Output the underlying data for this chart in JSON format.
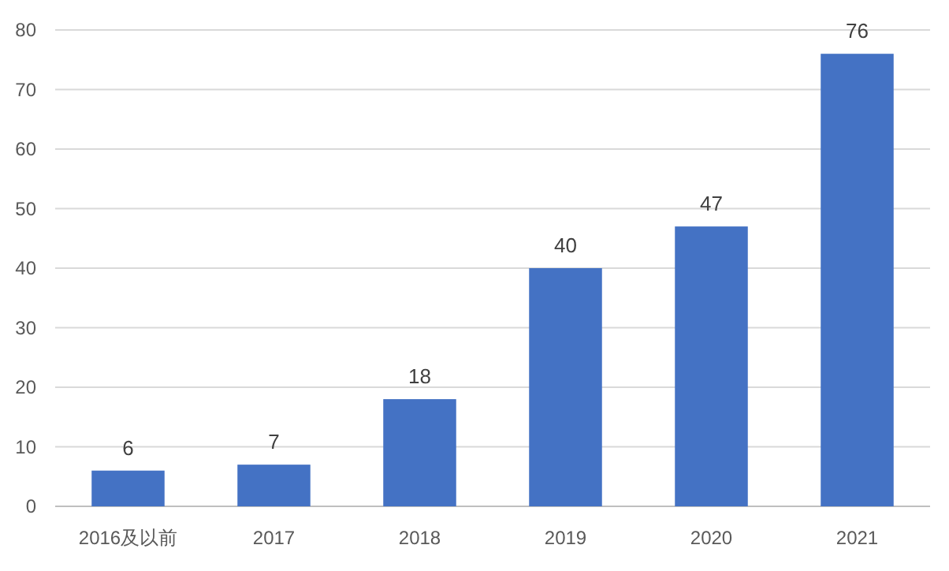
{
  "chart_data": {
    "type": "bar",
    "categories": [
      "2016及以前",
      "2017",
      "2018",
      "2019",
      "2020",
      "2021"
    ],
    "values": [
      6,
      7,
      18,
      40,
      47,
      76
    ],
    "color": "#4472c4",
    "ylim": [
      0,
      80
    ],
    "yticks": [
      0,
      10,
      20,
      30,
      40,
      50,
      60,
      70,
      80
    ],
    "grid": "y",
    "data_labels": true
  }
}
